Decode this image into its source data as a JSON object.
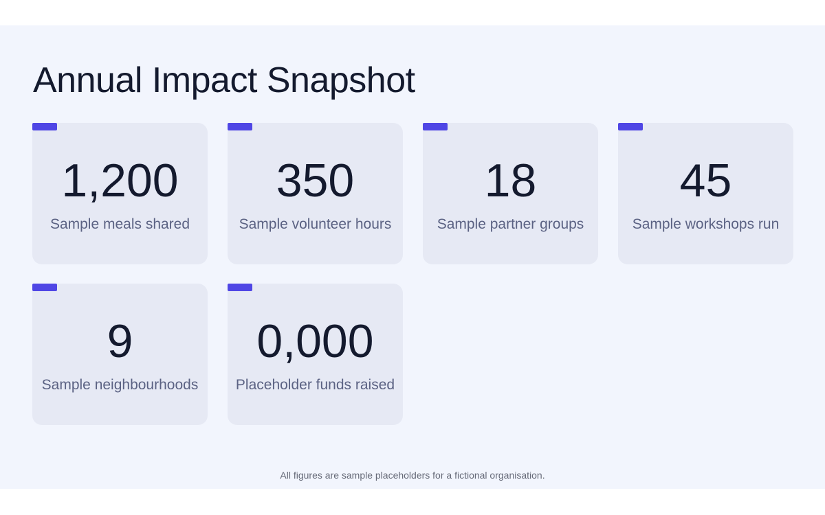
{
  "header": {
    "title": "Annual Impact Snapshot"
  },
  "cards": [
    {
      "value": "1,200",
      "label": "Sample meals shared"
    },
    {
      "value": "350",
      "label": "Sample volunteer hours"
    },
    {
      "value": "18",
      "label": "Sample partner groups"
    },
    {
      "value": "45",
      "label": "Sample workshops run"
    },
    {
      "value": "9",
      "label": "Sample neighbourhoods"
    },
    {
      "value": "0,000",
      "label": "Placeholder funds raised"
    }
  ],
  "footer": {
    "note": "All figures are sample placeholders for a fictional organisation."
  }
}
